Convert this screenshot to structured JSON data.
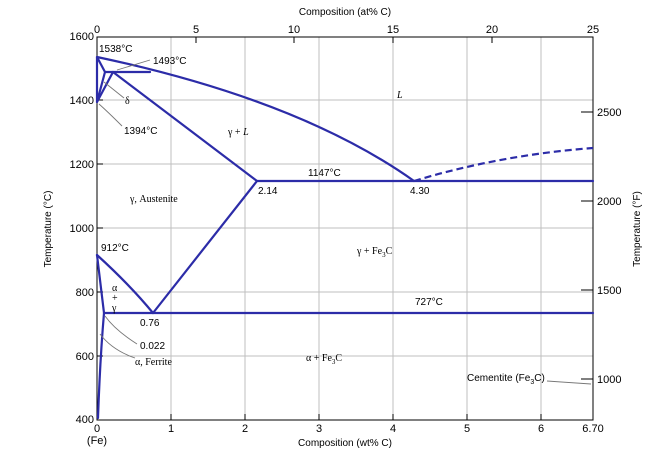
{
  "axes": {
    "bottom_title": "Composition (wt% C)",
    "bottom_ticks": [
      "0",
      "1",
      "2",
      "3",
      "4",
      "5",
      "6",
      "6.70"
    ],
    "bottom_sub_label": "(Fe)",
    "top_title": "Composition (at% C)",
    "top_ticks": [
      "0",
      "5",
      "10",
      "15",
      "20",
      "25"
    ],
    "left_title": "Temperature (°C)",
    "left_ticks": [
      "1600",
      "1400",
      "1200",
      "1000",
      "800",
      "600",
      "400"
    ],
    "right_title": "Temperature (°F)",
    "right_ticks": [
      "2500",
      "2000",
      "1500",
      "1000"
    ],
    "ranges": {
      "wt_pct_c": [
        0,
        6.7
      ],
      "at_pct_c": [
        0,
        25
      ],
      "temp_c": [
        400,
        1600
      ]
    }
  },
  "annotations": {
    "t1538": "1538°C",
    "t1493": "1493°C",
    "t1394": "1394°C",
    "t1147": "1147°C",
    "t912": "912°C",
    "t727": "727°C",
    "c214": "2.14",
    "c430": "4.30",
    "c076": "0.76",
    "c0022": "0.022"
  },
  "regions": {
    "liquid": "L",
    "delta": "δ",
    "gamma_liquid_g": "γ + ",
    "gamma_liquid_l": "L",
    "austenite": "γ, Austenite",
    "gamma_fe3c_main": "γ + Fe",
    "gamma_fe3c_sub": "3",
    "gamma_fe3c_tail": "C",
    "alpha_gamma_a": "α",
    "alpha_gamma_plus": "+",
    "alpha_gamma_g": "γ",
    "ferrite": "α, Ferrite",
    "alpha_fe3c_main": "α + Fe",
    "alpha_fe3c_sub": "3",
    "alpha_fe3c_tail": "C",
    "cementite_main": "Cementite (Fe",
    "cementite_sub": "3",
    "cementite_tail": "C)"
  },
  "colors": {
    "phase_lines": "#2c2ca8",
    "grid": "#bfbfbf",
    "axes": "#000000"
  }
}
